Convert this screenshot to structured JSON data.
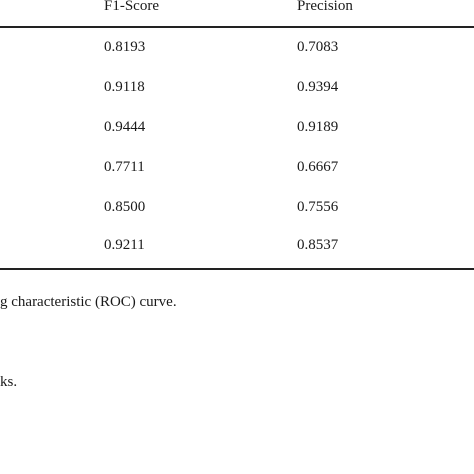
{
  "table": {
    "headers": {
      "f1": "F1-Score",
      "precision": "Precision"
    },
    "rows": [
      {
        "f1": "0.8193",
        "precision": "0.7083"
      },
      {
        "f1": "0.9118",
        "precision": "0.9394"
      },
      {
        "f1": "0.9444",
        "precision": "0.9189"
      },
      {
        "f1": "0.7711",
        "precision": "0.6667"
      },
      {
        "f1": "0.8500",
        "precision": "0.7556"
      },
      {
        "f1": "0.9211",
        "precision": "0.8537"
      }
    ]
  },
  "footnotes": {
    "line1": "g characteristic (ROC) curve.",
    "line2": "ks."
  }
}
